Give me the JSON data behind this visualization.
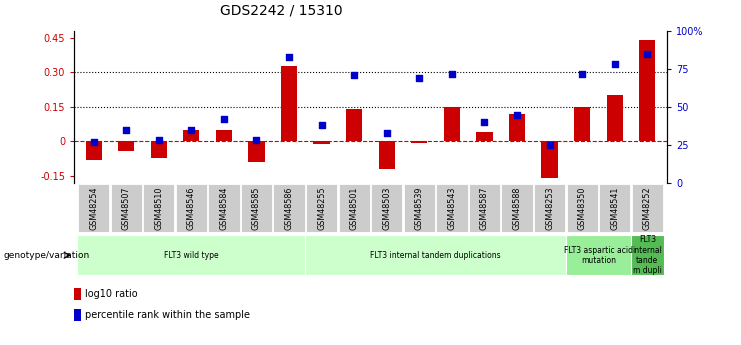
{
  "title": "GDS2242 / 15310",
  "samples": [
    "GSM48254",
    "GSM48507",
    "GSM48510",
    "GSM48546",
    "GSM48584",
    "GSM48585",
    "GSM48586",
    "GSM48255",
    "GSM48501",
    "GSM48503",
    "GSM48539",
    "GSM48543",
    "GSM48587",
    "GSM48588",
    "GSM48253",
    "GSM48350",
    "GSM48541",
    "GSM48252"
  ],
  "log10_ratio": [
    -0.08,
    -0.04,
    -0.07,
    0.05,
    0.05,
    -0.09,
    0.33,
    -0.01,
    0.14,
    -0.12,
    -0.005,
    0.15,
    0.04,
    0.12,
    -0.16,
    0.15,
    0.2,
    0.44
  ],
  "percentile_rank": [
    0.27,
    0.35,
    0.28,
    0.35,
    0.42,
    0.28,
    0.83,
    0.38,
    0.71,
    0.33,
    0.69,
    0.72,
    0.4,
    0.45,
    0.25,
    0.72,
    0.78,
    0.85
  ],
  "ylim_left": [
    -0.18,
    0.48
  ],
  "ylim_right": [
    0.0,
    1.0
  ],
  "yticks_left": [
    -0.15,
    0.0,
    0.15,
    0.3,
    0.45
  ],
  "ytick_labels_left": [
    "-0.15",
    "0",
    "0.15",
    "0.30",
    "0.45"
  ],
  "yticks_right": [
    0.0,
    0.25,
    0.5,
    0.75,
    1.0
  ],
  "ytick_labels_right": [
    "0",
    "25",
    "50",
    "75",
    "100%"
  ],
  "hlines": [
    0.15,
    0.3
  ],
  "zero_line": 0.0,
  "groups": [
    {
      "label": "FLT3 wild type",
      "start": 0,
      "end": 7,
      "color": "#ccffcc"
    },
    {
      "label": "FLT3 internal tandem duplications",
      "start": 7,
      "end": 15,
      "color": "#ccffcc"
    },
    {
      "label": "FLT3 aspartic acid\nmutation",
      "start": 15,
      "end": 17,
      "color": "#99ee99"
    },
    {
      "label": "FLT3\ninternal\ntande\nm dupli",
      "start": 17,
      "end": 18,
      "color": "#55bb55"
    }
  ],
  "bar_color": "#cc0000",
  "dot_color": "#0000cc",
  "bar_width": 0.5,
  "dot_size": 15,
  "background_color": "#ffffff",
  "genotype_label": "genotype/variation",
  "legend_items": [
    {
      "label": "log10 ratio",
      "color": "#cc0000"
    },
    {
      "label": "percentile rank within the sample",
      "color": "#0000cc"
    }
  ]
}
